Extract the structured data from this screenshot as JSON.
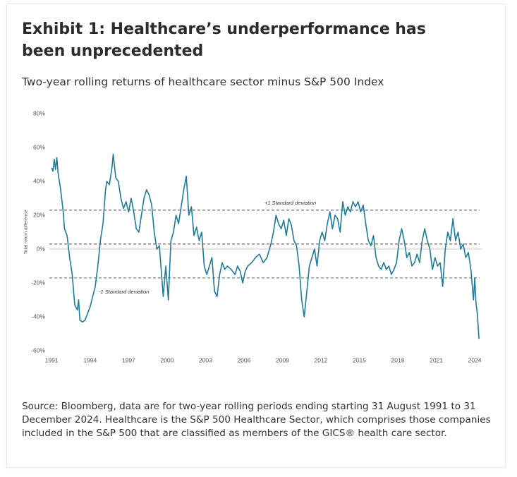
{
  "chart_data": {
    "type": "line",
    "title": "Exhibit 1: Healthcare’s underperformance has been unprecedented",
    "subtitle": "Two-year rolling returns of healthcare sector minus S&P 500 Index",
    "y_label": "Total return difference",
    "note": "Source: Bloomberg, data are for two-year rolling periods ending starting 31 August 1991 to 31 December 2024. Healthcare is the S&P 500 Healthcare Sector, which comprises those companies included in the S&P 500 that are classified as members of the GICS® health care sector.",
    "xlim": [
      1990.6,
      2024.6
    ],
    "xticks": [
      1991,
      1994,
      1997,
      2000,
      2003,
      2006,
      2009,
      2012,
      2015,
      2018,
      2021,
      2024
    ],
    "ylim": [
      -60,
      80
    ],
    "yticks": [
      {
        "value": -60,
        "label": "-60%"
      },
      {
        "value": -40,
        "label": "-40%"
      },
      {
        "value": -20,
        "label": "-20%"
      },
      {
        "value": 0,
        "label": "0%"
      },
      {
        "value": 20,
        "label": "20%"
      },
      {
        "value": 40,
        "label": "40%"
      },
      {
        "value": 60,
        "label": "60%"
      },
      {
        "value": 80,
        "label": "80%"
      }
    ],
    "reference_lines": [
      {
        "value": 23,
        "label": "+1 Standard deviation",
        "color": "#5b4fc4"
      },
      {
        "value": 3,
        "color": "#b03a3a"
      },
      {
        "value": -17,
        "label": "-1 Standard deviation",
        "color": "#3aa05a"
      }
    ],
    "series": [
      {
        "name": "Healthcare minus S&P 500",
        "color": "#1c7c99",
        "x": [
          1991.0,
          1991.1,
          1991.2,
          1991.3,
          1991.4,
          1991.5,
          1991.7,
          1991.9,
          1992.0,
          1992.2,
          1992.4,
          1992.6,
          1992.8,
          1993.0,
          1993.1,
          1993.2,
          1993.4,
          1993.6,
          1993.8,
          1994.0,
          1994.2,
          1994.4,
          1994.6,
          1994.8,
          1995.0,
          1995.2,
          1995.3,
          1995.5,
          1995.7,
          1995.8,
          1996.0,
          1996.2,
          1996.4,
          1996.6,
          1996.8,
          1997.0,
          1997.2,
          1997.4,
          1997.6,
          1997.8,
          1998.0,
          1998.2,
          1998.4,
          1998.6,
          1998.8,
          1999.0,
          1999.2,
          1999.4,
          1999.6,
          1999.7,
          1999.9,
          2000.1,
          2000.3,
          2000.5,
          2000.7,
          2000.9,
          2001.1,
          2001.3,
          2001.5,
          2001.7,
          2001.9,
          2002.1,
          2002.3,
          2002.5,
          2002.7,
          2002.9,
          2003.1,
          2003.3,
          2003.5,
          2003.7,
          2003.9,
          2004.1,
          2004.3,
          2004.5,
          2004.7,
          2005.0,
          2005.3,
          2005.5,
          2005.7,
          2005.9,
          2006.1,
          2006.3,
          2006.6,
          2006.9,
          2007.2,
          2007.5,
          2007.8,
          2008.1,
          2008.3,
          2008.5,
          2008.7,
          2008.9,
          2009.1,
          2009.3,
          2009.5,
          2009.7,
          2009.9,
          2010.1,
          2010.3,
          2010.5,
          2010.7,
          2010.9,
          2011.1,
          2011.3,
          2011.5,
          2011.7,
          2011.9,
          2012.1,
          2012.3,
          2012.5,
          2012.7,
          2012.9,
          2013.1,
          2013.3,
          2013.5,
          2013.7,
          2013.9,
          2014.1,
          2014.3,
          2014.5,
          2014.7,
          2014.9,
          2015.1,
          2015.3,
          2015.5,
          2015.7,
          2015.9,
          2016.1,
          2016.3,
          2016.5,
          2016.7,
          2016.9,
          2017.1,
          2017.3,
          2017.5,
          2017.7,
          2017.9,
          2018.1,
          2018.3,
          2018.5,
          2018.7,
          2018.9,
          2019.1,
          2019.3,
          2019.5,
          2019.7,
          2019.9,
          2020.1,
          2020.3,
          2020.5,
          2020.7,
          2020.9,
          2021.1,
          2021.3,
          2021.5,
          2021.7,
          2021.9,
          2022.1,
          2022.3,
          2022.5,
          2022.7,
          2022.9,
          2023.1,
          2023.3,
          2023.5,
          2023.7,
          2023.9,
          2024.0,
          2024.1,
          2024.2,
          2024.33
        ],
        "values": [
          48,
          46,
          53,
          47,
          54,
          45,
          35,
          22,
          12,
          8,
          -5,
          -15,
          -33,
          -36,
          -30,
          -42,
          -43,
          -42,
          -38,
          -34,
          -28,
          -22,
          -10,
          5,
          15,
          35,
          40,
          38,
          48,
          56,
          42,
          40,
          30,
          24,
          28,
          22,
          30,
          22,
          12,
          10,
          20,
          30,
          35,
          32,
          26,
          10,
          0,
          2,
          -18,
          -28,
          -10,
          -30,
          5,
          10,
          20,
          15,
          25,
          35,
          43,
          20,
          25,
          8,
          13,
          5,
          10,
          -10,
          -15,
          -10,
          -5,
          -25,
          -28,
          -15,
          -8,
          -12,
          -10,
          -12,
          -15,
          -10,
          -13,
          -20,
          -13,
          -10,
          -8,
          -5,
          -3,
          -8,
          -5,
          3,
          10,
          20,
          15,
          12,
          17,
          8,
          18,
          14,
          5,
          2,
          -10,
          -30,
          -40,
          -25,
          -10,
          -5,
          0,
          -10,
          5,
          10,
          5,
          15,
          22,
          12,
          20,
          18,
          10,
          28,
          20,
          25,
          22,
          28,
          25,
          28,
          22,
          26,
          15,
          5,
          2,
          8,
          -5,
          -10,
          -12,
          -8,
          -12,
          -10,
          -15,
          -12,
          -8,
          5,
          12,
          5,
          -5,
          -2,
          -10,
          -8,
          -3,
          -8,
          5,
          12,
          5,
          0,
          -12,
          -5,
          -10,
          -8,
          -22,
          0,
          10,
          5,
          18,
          5,
          10,
          0,
          3,
          -5,
          -2,
          -12,
          -30,
          -17,
          -32,
          -38,
          -53
        ]
      }
    ]
  }
}
